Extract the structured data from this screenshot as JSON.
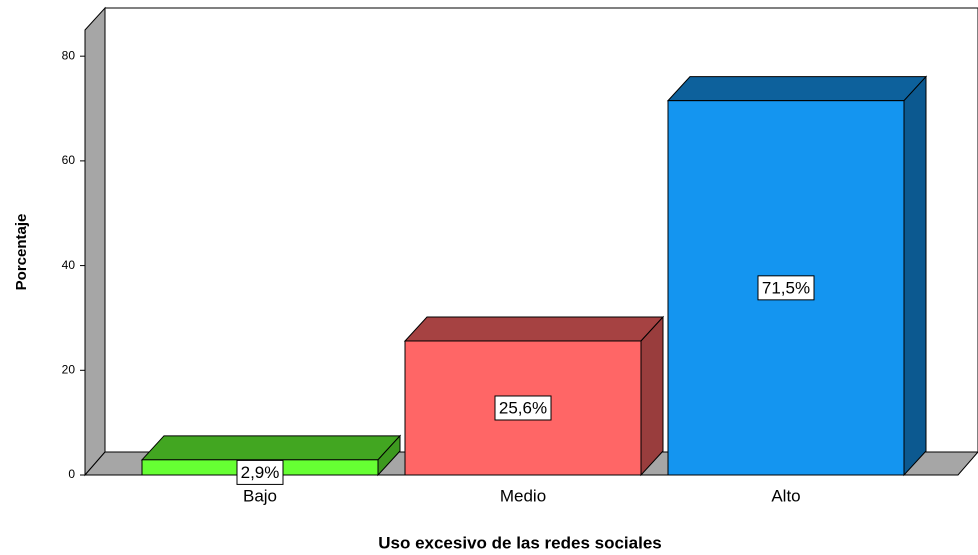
{
  "chart_data": {
    "type": "bar3d",
    "categories": [
      "Bajo",
      "Medio",
      "Alto"
    ],
    "values": [
      2.9,
      25.6,
      71.5
    ],
    "value_labels": [
      "2,9%",
      "25,6%",
      "71,5%"
    ],
    "colors": [
      "#66ff33",
      "#ff6666",
      "#1495f0"
    ],
    "xlabel": "Uso excesivo de las redes sociales",
    "ylabel": "Porcentaje",
    "ylim": [
      0,
      85
    ],
    "yticks": [
      0,
      20,
      40,
      60,
      80
    ],
    "grid": false
  }
}
